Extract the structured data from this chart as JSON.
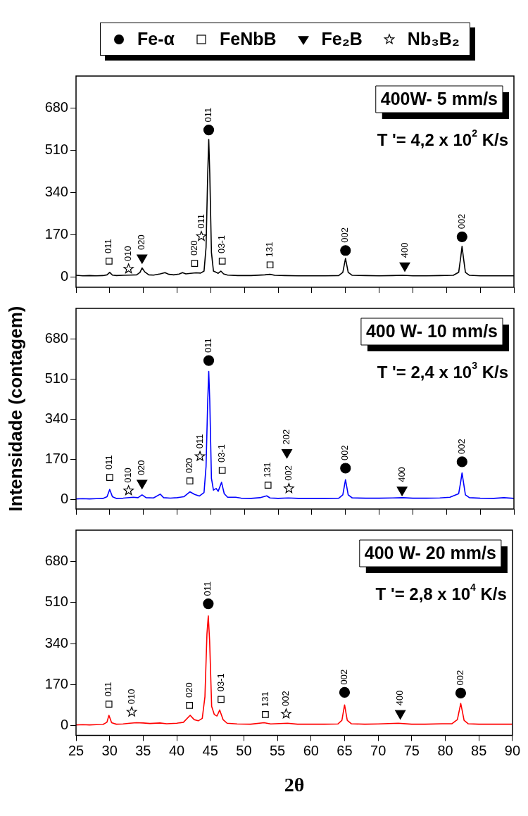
{
  "chart_data": [
    {
      "type": "line",
      "title": "400W- 5 mm/s",
      "subtitle": "T '= 4,2 x 10$^{2}$ K/s",
      "xlim": [
        25,
        90
      ],
      "xticks": [
        25,
        30,
        35,
        40,
        45,
        50,
        55,
        60,
        65,
        70,
        75,
        80,
        85,
        90
      ],
      "ylim": [
        -40,
        810
      ],
      "yticks": [
        0,
        170,
        340,
        510,
        680
      ],
      "grid": false,
      "legend": "top",
      "tick_labels": "y",
      "series": [
        {
          "color": "#000000",
          "marker": "none",
          "x": [
            25,
            26,
            27,
            28,
            29,
            29.6,
            30,
            30.4,
            31,
            32,
            33,
            34,
            34.5,
            34.8,
            35.2,
            35.8,
            36.5,
            37.5,
            38.2,
            38.8,
            39.5,
            40.3,
            40.8,
            41.3,
            42,
            42.8,
            43.5,
            44,
            44.3,
            44.55,
            44.7,
            44.85,
            45.1,
            45.4,
            45.8,
            46.1,
            46.5,
            46.9,
            47.5,
            49,
            51,
            53,
            53.8,
            54.5,
            56,
            58,
            60,
            62,
            64,
            64.6,
            65,
            65.4,
            66,
            68,
            70,
            72,
            73.5,
            75,
            77,
            79,
            81,
            81.8,
            82.1,
            82.3,
            82.5,
            82.8,
            83.4,
            85,
            87,
            89,
            90
          ],
          "values": [
            8,
            6,
            7,
            6,
            7,
            10,
            20,
            9,
            7,
            8,
            9,
            10,
            20,
            38,
            22,
            10,
            9,
            14,
            19,
            12,
            10,
            13,
            19,
            14,
            16,
            18,
            17,
            25,
            120,
            420,
            555,
            420,
            100,
            25,
            20,
            16,
            25,
            14,
            9,
            7,
            7,
            10,
            12,
            8,
            7,
            6,
            6,
            6,
            7,
            20,
            76,
            20,
            8,
            7,
            6,
            7,
            8,
            6,
            6,
            7,
            8,
            20,
            80,
            125,
            80,
            20,
            8,
            6,
            6,
            6,
            6
          ]
        },
        {
          "type": "scatter",
          "name": "Fe-α",
          "color": "#000000",
          "marker": "circle",
          "x": [
            44.7,
            65.0,
            82.3
          ],
          "values": [
            593,
            108,
            163
          ]
        },
        {
          "type": "scatter",
          "name": "FeNbB",
          "color": "#000000",
          "marker": "square",
          "x": [
            29.9,
            42.6,
            46.7,
            53.8
          ],
          "values": [
            65,
            56,
            65,
            50
          ]
        },
        {
          "type": "scatter",
          "name": "Fe₂B",
          "color": "#000000",
          "marker": "triangle",
          "x": [
            34.8,
            73.8
          ],
          "values": [
            79,
            47
          ]
        },
        {
          "type": "scatter",
          "name": "Nb₃B₂",
          "color": "#000000",
          "marker": "star",
          "x": [
            32.8,
            43.6
          ],
          "values": [
            34,
            165
          ]
        }
      ],
      "annotations": [
        {
          "text": "011",
          "x": 29.9,
          "y": 65
        },
        {
          "text": "010",
          "x": 32.8,
          "y": 34
        },
        {
          "text": "020",
          "x": 34.8,
          "y": 79
        },
        {
          "text": "020",
          "x": 42.6,
          "y": 56
        },
        {
          "text": "011",
          "x": 43.6,
          "y": 165
        },
        {
          "text": "011",
          "x": 44.7,
          "y": 593
        },
        {
          "text": "03-1",
          "x": 46.7,
          "y": 65
        },
        {
          "text": "131",
          "x": 53.8,
          "y": 50
        },
        {
          "text": "002",
          "x": 65.0,
          "y": 108
        },
        {
          "text": "400",
          "x": 73.8,
          "y": 47
        },
        {
          "text": "002",
          "x": 82.3,
          "y": 163
        }
      ]
    },
    {
      "type": "line",
      "title": "400 W- 10 mm/s",
      "subtitle": "T '= 2,4 x 10$^{3}$ K/s",
      "ylabel": "Intensidade (contagem)",
      "xlim": [
        25,
        90
      ],
      "xticks": [
        25,
        30,
        35,
        40,
        45,
        50,
        55,
        60,
        65,
        70,
        75,
        80,
        85,
        90
      ],
      "ylim": [
        -40,
        810
      ],
      "yticks": [
        0,
        170,
        340,
        510,
        680
      ],
      "grid": false,
      "tick_labels": "y",
      "series": [
        {
          "color": "#0000ff",
          "marker": "none",
          "x": [
            25,
            26,
            27,
            28,
            29,
            29.6,
            30,
            30.4,
            31,
            32,
            33.5,
            34.2,
            34.8,
            35.4,
            36.5,
            37.5,
            38,
            39,
            40,
            41,
            41.9,
            42.6,
            43.3,
            44,
            44.3,
            44.55,
            44.7,
            44.85,
            45.1,
            45.4,
            45.8,
            46.1,
            46.6,
            47,
            47.5,
            48.7,
            49.5,
            51,
            52.3,
            53.3,
            53.8,
            55,
            56.5,
            58,
            60,
            62,
            64,
            64.6,
            65,
            65.4,
            66,
            68,
            70,
            72,
            73.5,
            75,
            77,
            79,
            80.5,
            81.8,
            82.1,
            82.3,
            82.5,
            82.8,
            83.4,
            85,
            87,
            88.5,
            90
          ],
          "values": [
            3,
            4,
            3,
            4,
            5,
            12,
            43,
            12,
            5,
            6,
            10,
            8,
            20,
            8,
            7,
            23,
            8,
            6,
            8,
            12,
            33,
            22,
            15,
            30,
            140,
            420,
            543,
            420,
            90,
            40,
            47,
            35,
            73,
            25,
            10,
            10,
            6,
            5,
            8,
            16,
            7,
            5,
            7,
            5,
            5,
            5,
            6,
            20,
            84,
            20,
            7,
            6,
            6,
            7,
            8,
            6,
            6,
            7,
            10,
            25,
            75,
            113,
            75,
            20,
            8,
            6,
            5,
            8,
            5
          ]
        },
        {
          "type": "scatter",
          "color": "#000000",
          "marker": "circle",
          "x": [
            44.7,
            65.0,
            82.3
          ],
          "values": [
            589,
            133,
            160
          ]
        },
        {
          "type": "scatter",
          "color": "#000000",
          "marker": "square",
          "x": [
            30.0,
            41.9,
            46.7,
            53.5
          ],
          "values": [
            94,
            79,
            124,
            61
          ]
        },
        {
          "type": "scatter",
          "color": "#000000",
          "marker": "triangle",
          "x": [
            34.8,
            56.3,
            73.4
          ],
          "values": [
            70,
            200,
            41
          ]
        },
        {
          "type": "scatter",
          "color": "#000000",
          "marker": "star",
          "x": [
            32.8,
            43.4,
            56.6
          ],
          "values": [
            38,
            183,
            47
          ]
        }
      ],
      "annotations": [
        {
          "text": "011",
          "x": 30.0,
          "y": 94
        },
        {
          "text": "010",
          "x": 32.8,
          "y": 38
        },
        {
          "text": "020",
          "x": 34.8,
          "y": 70
        },
        {
          "text": "020",
          "x": 41.9,
          "y": 79
        },
        {
          "text": "011",
          "x": 43.4,
          "y": 183
        },
        {
          "text": "011",
          "x": 44.7,
          "y": 589
        },
        {
          "text": "03-1",
          "x": 46.7,
          "y": 124
        },
        {
          "text": "131",
          "x": 53.5,
          "y": 61
        },
        {
          "text": "202",
          "x": 56.3,
          "y": 200
        },
        {
          "text": "002",
          "x": 56.6,
          "y": 47
        },
        {
          "text": "002",
          "x": 65.0,
          "y": 133
        },
        {
          "text": "400",
          "x": 73.4,
          "y": 41
        },
        {
          "text": "002",
          "x": 82.3,
          "y": 160
        }
      ]
    },
    {
      "type": "line",
      "title": "400 W- 20 mm/s",
      "subtitle": "T '= 2,8 x 10$^{4}$ K/s",
      "xlabel": "2θ",
      "xlim": [
        25,
        90
      ],
      "xticks": [
        25,
        30,
        35,
        40,
        45,
        50,
        55,
        60,
        65,
        70,
        75,
        80,
        85,
        90
      ],
      "ylim": [
        -40,
        810
      ],
      "yticks": [
        0,
        170,
        340,
        510,
        680
      ],
      "grid": false,
      "series": [
        {
          "color": "#ff0000",
          "marker": "none",
          "x": [
            25,
            26,
            27,
            28,
            29,
            29.6,
            29.9,
            30.3,
            31,
            32,
            33,
            34,
            35,
            36,
            37.5,
            38.5,
            40,
            41,
            42,
            42.6,
            43.2,
            43.8,
            44.2,
            44.5,
            44.7,
            44.9,
            45.2,
            45.6,
            46,
            46.4,
            46.9,
            47.5,
            49,
            51,
            53,
            54,
            56.5,
            58,
            60,
            62,
            64,
            64.6,
            65,
            65.4,
            66,
            68,
            70,
            73,
            75,
            77,
            79.5,
            81,
            81.8,
            82.1,
            82.3,
            82.5,
            82.8,
            83.4,
            85,
            87,
            89,
            90
          ],
          "values": [
            3,
            4,
            3,
            4,
            5,
            14,
            43,
            12,
            6,
            7,
            10,
            12,
            11,
            9,
            11,
            8,
            10,
            14,
            43,
            25,
            20,
            30,
            120,
            380,
            455,
            350,
            80,
            46,
            40,
            65,
            25,
            10,
            7,
            6,
            12,
            7,
            10,
            6,
            6,
            6,
            7,
            22,
            86,
            22,
            8,
            6,
            7,
            10,
            6,
            6,
            8,
            8,
            25,
            65,
            92,
            65,
            22,
            8,
            6,
            6,
            6,
            6
          ]
        },
        {
          "type": "scatter",
          "color": "#000000",
          "marker": "circle",
          "x": [
            44.7,
            65.0,
            82.3
          ],
          "values": [
            505,
            138,
            135
          ]
        },
        {
          "type": "scatter",
          "color": "#000000",
          "marker": "square",
          "x": [
            29.9,
            41.9,
            46.6,
            53.2
          ],
          "values": [
            89,
            84,
            109,
            46
          ]
        },
        {
          "type": "scatter",
          "color": "#000000",
          "marker": "triangle",
          "x": [
            73.3
          ],
          "values": [
            51
          ]
        },
        {
          "type": "scatter",
          "color": "#000000",
          "marker": "star",
          "x": [
            33.3,
            56.3
          ],
          "values": [
            57,
            49
          ]
        }
      ],
      "annotations": [
        {
          "text": "011",
          "x": 29.9,
          "y": 89
        },
        {
          "text": "010",
          "x": 33.3,
          "y": 57
        },
        {
          "text": "020",
          "x": 41.9,
          "y": 84
        },
        {
          "text": "011",
          "x": 44.7,
          "y": 505
        },
        {
          "text": "03-1",
          "x": 46.6,
          "y": 109
        },
        {
          "text": "131",
          "x": 53.2,
          "y": 46
        },
        {
          "text": "002",
          "x": 56.3,
          "y": 49
        },
        {
          "text": "002",
          "x": 65.0,
          "y": 138
        },
        {
          "text": "400",
          "x": 73.3,
          "y": 51
        },
        {
          "text": "002",
          "x": 82.3,
          "y": 135
        }
      ]
    }
  ]
}
